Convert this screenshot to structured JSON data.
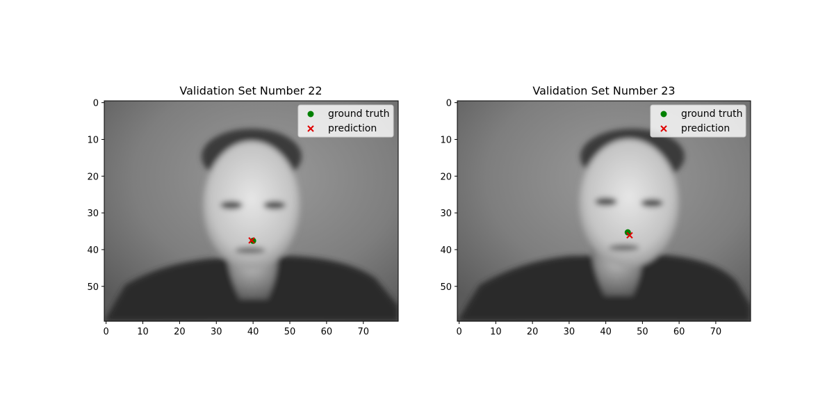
{
  "chart_data": [
    {
      "type": "scatter",
      "title": "Validation Set Number 22",
      "xlabel": "",
      "ylabel": "",
      "xlim": [
        -0.5,
        79.5
      ],
      "ylim": [
        59.5,
        -0.5
      ],
      "xticks": [
        "0",
        "10",
        "20",
        "30",
        "40",
        "50",
        "60",
        "70"
      ],
      "yticks": [
        "0",
        "10",
        "20",
        "30",
        "40",
        "50"
      ],
      "grid": false,
      "background": "grayscale face image (80×60)",
      "legend": {
        "position": "top-right",
        "entries": [
          "ground truth",
          "prediction"
        ]
      },
      "series": [
        {
          "name": "ground truth",
          "marker": "circle",
          "color": "#008000",
          "points": [
            [
              40,
              37.6
            ]
          ]
        },
        {
          "name": "prediction",
          "marker": "x",
          "color": "#e00000",
          "points": [
            [
              39.6,
              37.5
            ]
          ]
        }
      ]
    },
    {
      "type": "scatter",
      "title": "Validation Set Number 23",
      "xlabel": "",
      "ylabel": "",
      "xlim": [
        -0.5,
        79.5
      ],
      "ylim": [
        59.5,
        -0.5
      ],
      "xticks": [
        "0",
        "10",
        "20",
        "30",
        "40",
        "50",
        "60",
        "70"
      ],
      "yticks": [
        "0",
        "10",
        "20",
        "30",
        "40",
        "50"
      ],
      "grid": false,
      "background": "grayscale face image (80×60)",
      "legend": {
        "position": "top-right",
        "entries": [
          "ground truth",
          "prediction"
        ]
      },
      "series": [
        {
          "name": "ground truth",
          "marker": "circle",
          "color": "#008000",
          "points": [
            [
              46,
              35.3
            ]
          ]
        },
        {
          "name": "prediction",
          "marker": "x",
          "color": "#e00000",
          "points": [
            [
              46.5,
              36.1
            ]
          ]
        }
      ]
    }
  ]
}
